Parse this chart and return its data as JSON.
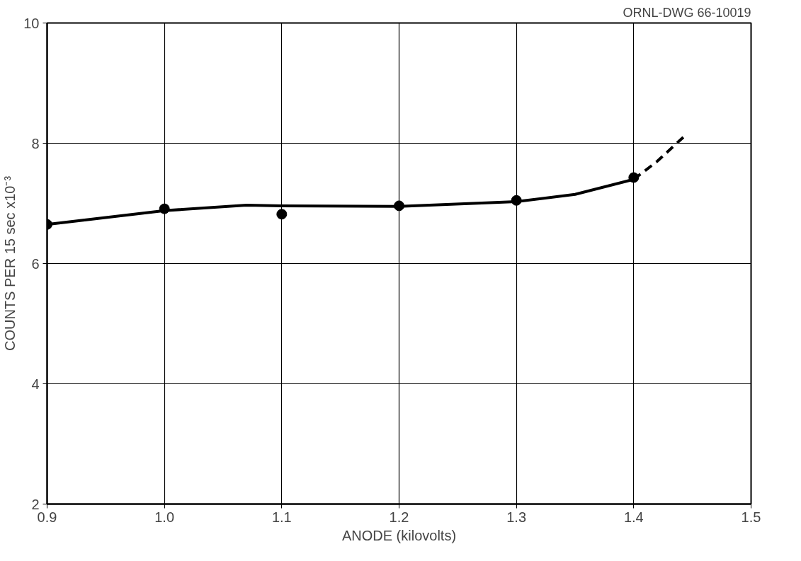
{
  "chart_data": {
    "type": "scatter",
    "xlabel": "ANODE (kilovolts)",
    "ylabel": "COUNTS PER 15 sec x10⁻³",
    "annotations": [
      "ORNL-DWG 66-10019"
    ],
    "xlim": [
      0.9,
      1.5
    ],
    "ylim": [
      2,
      10
    ],
    "xticks": [
      0.9,
      {
        "value": 1,
        "label": "1.0"
      },
      1.1,
      1.2,
      1.3,
      1.4,
      1.5
    ],
    "yticks": [
      2,
      4,
      6,
      8,
      10
    ],
    "grid": true,
    "series": [
      {
        "type": "line",
        "color": "#000000",
        "line_style": "solid",
        "x": [
          0.9,
          1.0,
          1.07,
          1.1,
          1.2,
          1.3,
          1.35,
          1.4
        ],
        "values": [
          6.65,
          6.88,
          6.97,
          6.96,
          6.95,
          7.03,
          7.15,
          7.4
        ]
      },
      {
        "type": "line",
        "color": "#000000",
        "line_style": "dashed",
        "x": [
          1.4,
          1.42,
          1.445
        ],
        "values": [
          7.4,
          7.7,
          8.15
        ]
      },
      {
        "color": "#000000",
        "marker": "circle",
        "x": [
          0.9,
          1.0,
          1.1,
          1.2,
          1.3,
          1.4
        ],
        "values": [
          6.65,
          6.91,
          6.82,
          6.96,
          7.05,
          7.43
        ]
      }
    ]
  }
}
